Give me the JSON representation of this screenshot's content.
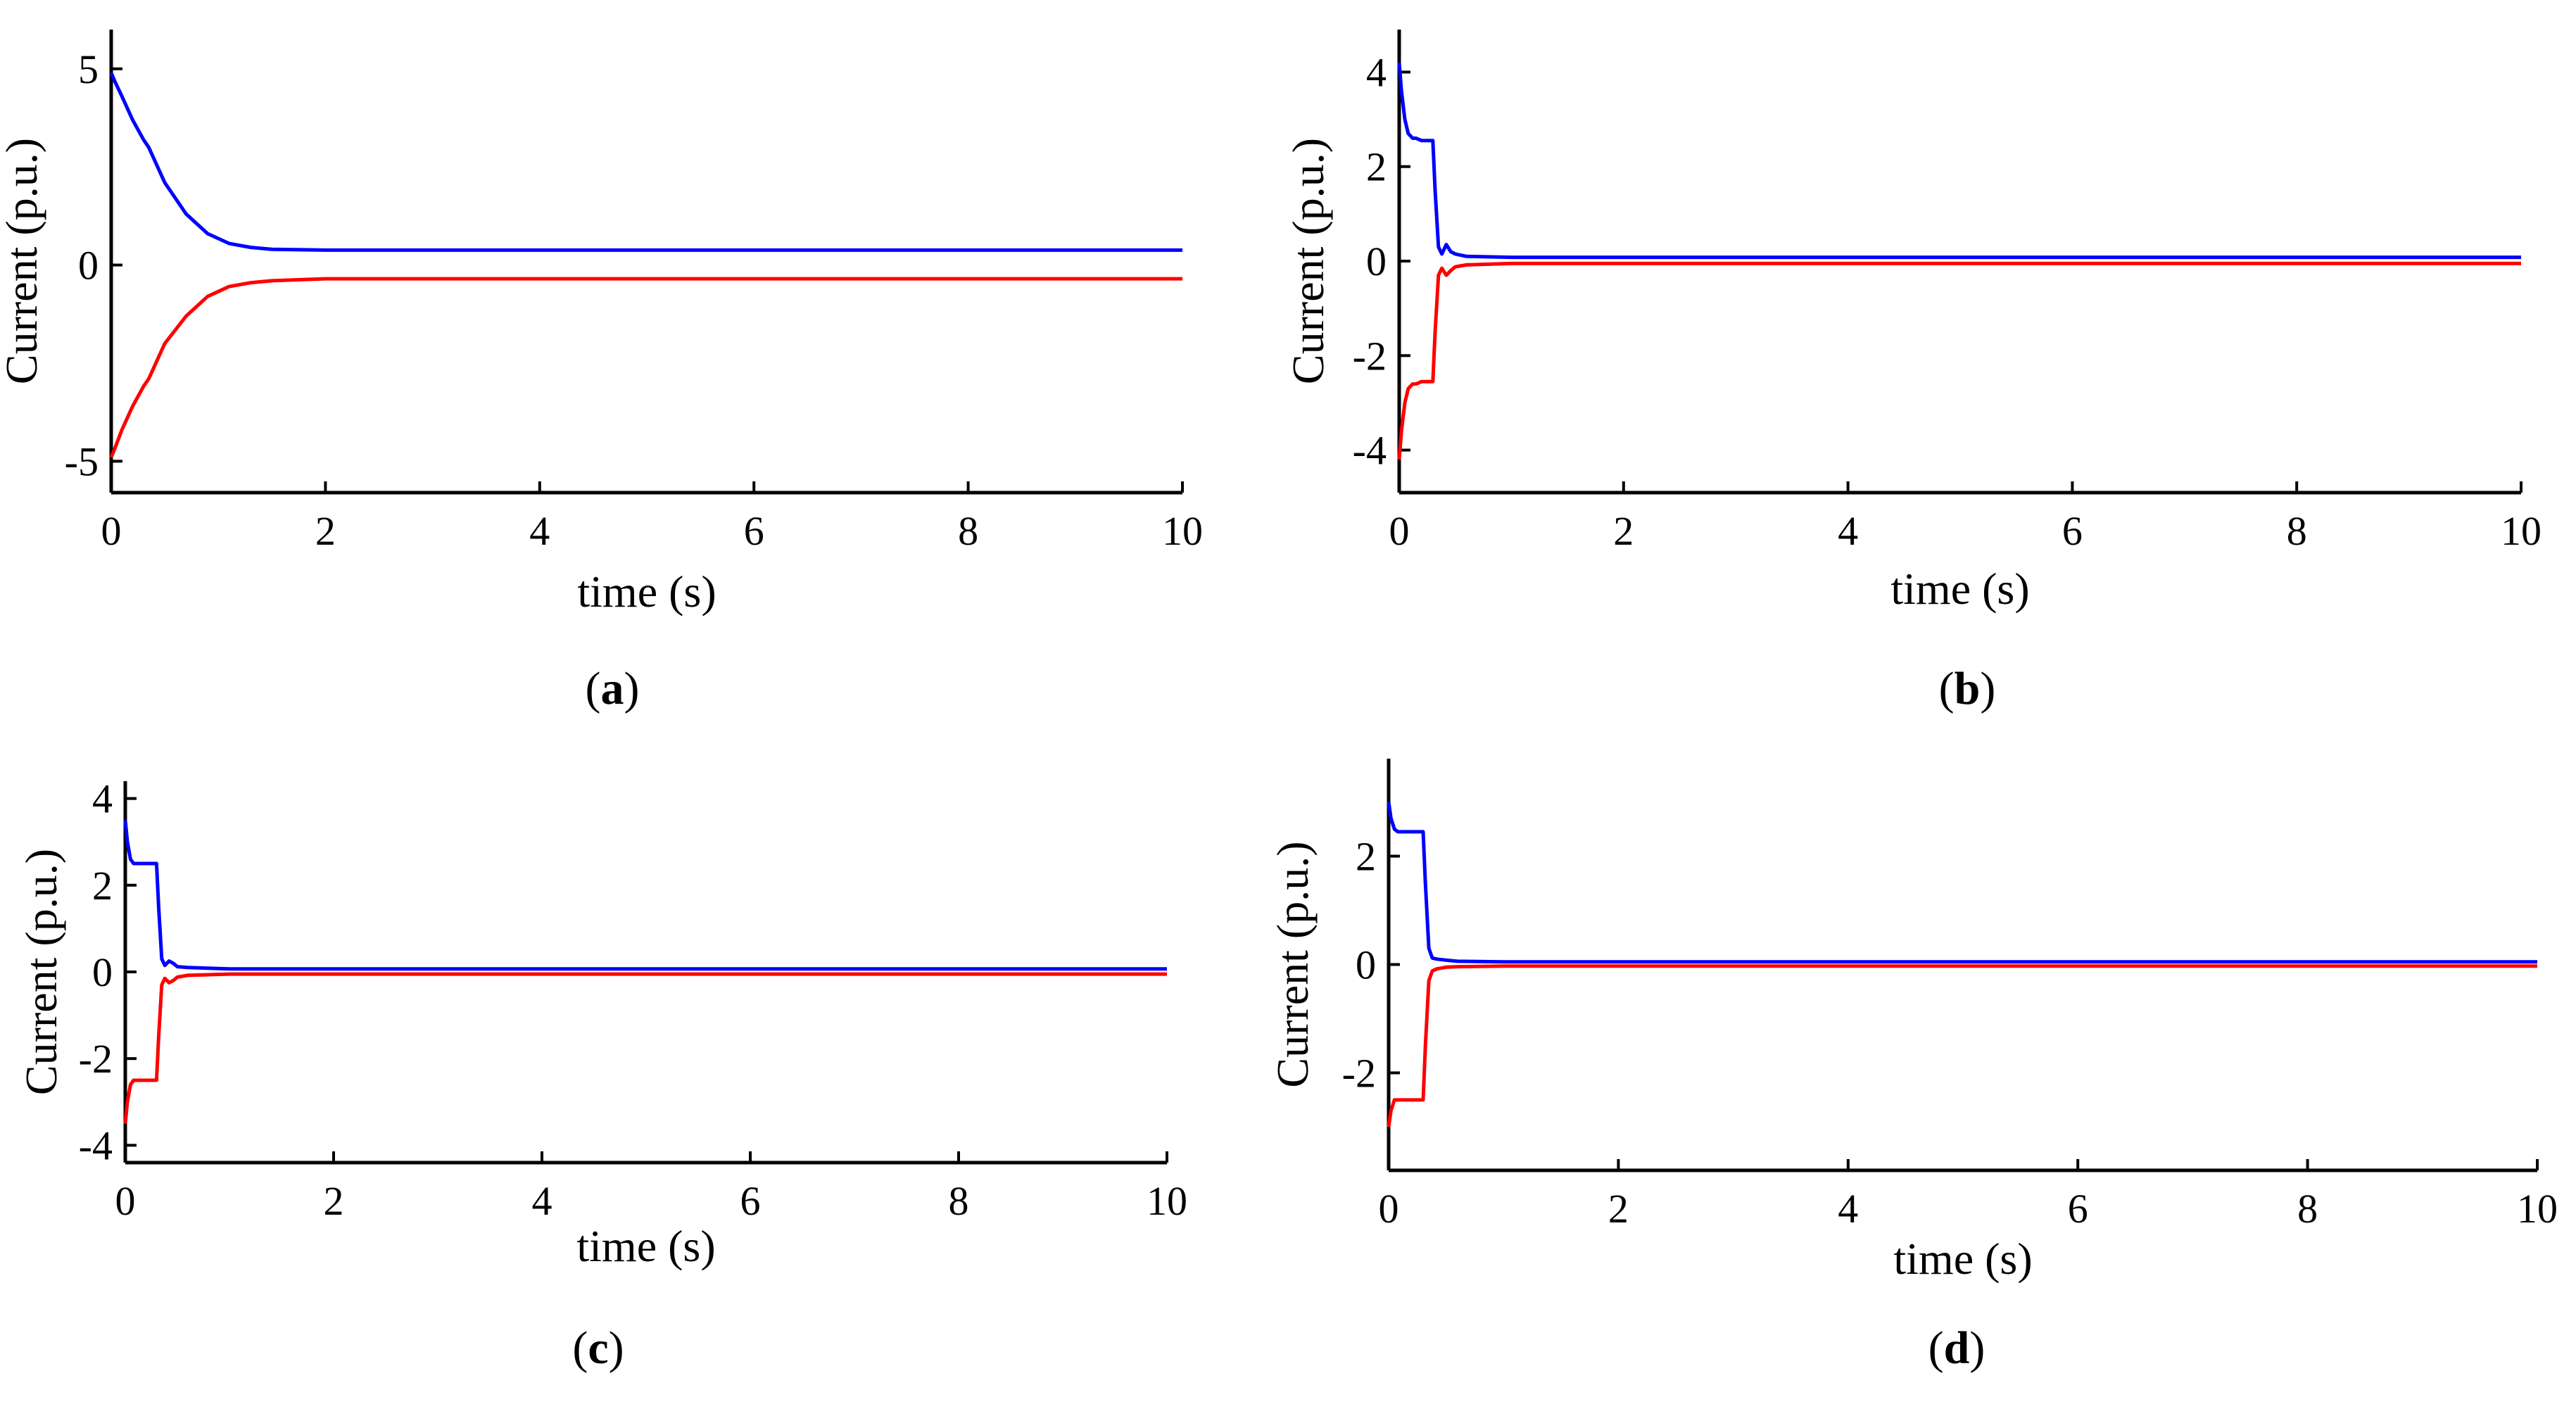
{
  "colors": {
    "series_pos": "#0000ff",
    "series_neg": "#ff0000",
    "axis": "#000000"
  },
  "chart_data": [
    {
      "type": "line",
      "caption": {
        "open": "(",
        "letter": "a",
        "close": ")"
      },
      "xlabel": "time (s)",
      "ylabel": "Current (p.u.)",
      "xlim": [
        0,
        10
      ],
      "ylim": [
        -5.8,
        6.0
      ],
      "xticks": [
        0,
        2,
        4,
        6,
        8,
        10
      ],
      "yticks": [
        -5,
        0,
        5
      ],
      "ytick_labels": [
        "-5",
        "0",
        "5"
      ],
      "series": [
        {
          "name": "positive",
          "color": "#0000ff",
          "x": [
            0,
            0.03,
            0.1,
            0.2,
            0.3,
            0.35,
            0.5,
            0.7,
            0.9,
            1.1,
            1.3,
            1.5,
            2,
            4,
            6,
            8,
            10
          ],
          "y": [
            4.9,
            4.7,
            4.3,
            3.7,
            3.2,
            3.0,
            2.1,
            1.3,
            0.8,
            0.55,
            0.45,
            0.4,
            0.38,
            0.38,
            0.38,
            0.38,
            0.38
          ]
        },
        {
          "name": "negative",
          "color": "#ff0000",
          "x": [
            0,
            0.03,
            0.1,
            0.2,
            0.3,
            0.35,
            0.5,
            0.7,
            0.9,
            1.1,
            1.3,
            1.5,
            2,
            4,
            6,
            8,
            10
          ],
          "y": [
            -4.9,
            -4.7,
            -4.2,
            -3.6,
            -3.1,
            -2.9,
            -2.0,
            -1.3,
            -0.8,
            -0.55,
            -0.45,
            -0.4,
            -0.35,
            -0.35,
            -0.35,
            -0.35,
            -0.35
          ]
        }
      ]
    },
    {
      "type": "line",
      "caption": {
        "open": "(",
        "letter": "b",
        "close": ")"
      },
      "xlabel": "time (s)",
      "ylabel": "Current (p.u.)",
      "xlim": [
        0,
        10
      ],
      "ylim": [
        -4.9,
        4.9
      ],
      "xticks": [
        0,
        2,
        4,
        6,
        8,
        10
      ],
      "yticks": [
        -4,
        -2,
        0,
        2,
        4
      ],
      "ytick_labels": [
        "-4",
        "-2",
        "0",
        "2",
        "4"
      ],
      "series": [
        {
          "name": "positive",
          "color": "#0000ff",
          "x": [
            0,
            0.02,
            0.05,
            0.08,
            0.12,
            0.15,
            0.2,
            0.25,
            0.3,
            0.32,
            0.35,
            0.38,
            0.42,
            0.46,
            0.5,
            0.6,
            1,
            4,
            7,
            10
          ],
          "y": [
            4.2,
            3.6,
            3.0,
            2.7,
            2.6,
            2.6,
            2.55,
            2.55,
            2.55,
            1.5,
            0.3,
            0.15,
            0.35,
            0.2,
            0.15,
            0.1,
            0.08,
            0.08,
            0.08,
            0.08
          ]
        },
        {
          "name": "negative",
          "color": "#ff0000",
          "x": [
            0,
            0.02,
            0.05,
            0.08,
            0.12,
            0.15,
            0.2,
            0.25,
            0.3,
            0.32,
            0.35,
            0.38,
            0.42,
            0.46,
            0.5,
            0.6,
            1,
            4,
            7,
            10
          ],
          "y": [
            -4.2,
            -3.6,
            -3.0,
            -2.7,
            -2.6,
            -2.6,
            -2.55,
            -2.55,
            -2.55,
            -1.5,
            -0.3,
            -0.15,
            -0.3,
            -0.2,
            -0.12,
            -0.08,
            -0.05,
            -0.05,
            -0.05,
            -0.05
          ]
        }
      ]
    },
    {
      "type": "line",
      "caption": {
        "open": "(",
        "letter": "c",
        "close": ")"
      },
      "xlabel": "time (s)",
      "ylabel": "Current (p.u.)",
      "xlim": [
        0,
        10
      ],
      "ylim": [
        -4.4,
        4.4
      ],
      "xticks": [
        0,
        2,
        4,
        6,
        8,
        10
      ],
      "yticks": [
        -4,
        -2,
        0,
        2,
        4
      ],
      "ytick_labels": [
        "-4",
        "-2",
        "0",
        "2",
        "4"
      ],
      "series": [
        {
          "name": "positive",
          "color": "#0000ff",
          "x": [
            0,
            0.02,
            0.05,
            0.08,
            0.12,
            0.2,
            0.3,
            0.32,
            0.35,
            0.38,
            0.42,
            0.46,
            0.5,
            0.6,
            1,
            4,
            7,
            10
          ],
          "y": [
            3.5,
            3.0,
            2.6,
            2.5,
            2.5,
            2.5,
            2.5,
            1.5,
            0.3,
            0.15,
            0.25,
            0.2,
            0.12,
            0.1,
            0.07,
            0.07,
            0.07,
            0.07
          ]
        },
        {
          "name": "negative",
          "color": "#ff0000",
          "x": [
            0,
            0.02,
            0.05,
            0.08,
            0.12,
            0.2,
            0.3,
            0.32,
            0.35,
            0.38,
            0.42,
            0.46,
            0.5,
            0.6,
            1,
            4,
            7,
            10
          ],
          "y": [
            -3.5,
            -3.0,
            -2.6,
            -2.5,
            -2.5,
            -2.5,
            -2.5,
            -1.5,
            -0.3,
            -0.15,
            -0.25,
            -0.2,
            -0.12,
            -0.08,
            -0.05,
            -0.05,
            -0.05,
            -0.05
          ]
        }
      ]
    },
    {
      "type": "line",
      "caption": {
        "open": "(",
        "letter": "d",
        "close": ")"
      },
      "xlabel": "time (s)",
      "ylabel": "Current (p.u.)",
      "xlim": [
        0,
        10
      ],
      "ylim": [
        -3.8,
        3.8
      ],
      "xticks": [
        0,
        2,
        4,
        6,
        8,
        10
      ],
      "yticks": [
        -2,
        0,
        2
      ],
      "ytick_labels": [
        "-2",
        "0",
        "2"
      ],
      "series": [
        {
          "name": "positive",
          "color": "#0000ff",
          "x": [
            0,
            0.02,
            0.05,
            0.08,
            0.12,
            0.2,
            0.3,
            0.32,
            0.35,
            0.38,
            0.42,
            0.5,
            0.6,
            1,
            4,
            7,
            10
          ],
          "y": [
            3.0,
            2.7,
            2.5,
            2.45,
            2.45,
            2.45,
            2.45,
            1.5,
            0.3,
            0.12,
            0.1,
            0.08,
            0.06,
            0.05,
            0.05,
            0.05,
            0.05
          ]
        },
        {
          "name": "negative",
          "color": "#ff0000",
          "x": [
            0,
            0.02,
            0.05,
            0.08,
            0.12,
            0.2,
            0.3,
            0.32,
            0.35,
            0.38,
            0.42,
            0.5,
            0.6,
            1,
            4,
            7,
            10
          ],
          "y": [
            -3.0,
            -2.7,
            -2.5,
            -2.5,
            -2.5,
            -2.5,
            -2.5,
            -1.5,
            -0.3,
            -0.12,
            -0.08,
            -0.05,
            -0.04,
            -0.03,
            -0.03,
            -0.03,
            -0.03
          ]
        }
      ]
    }
  ]
}
